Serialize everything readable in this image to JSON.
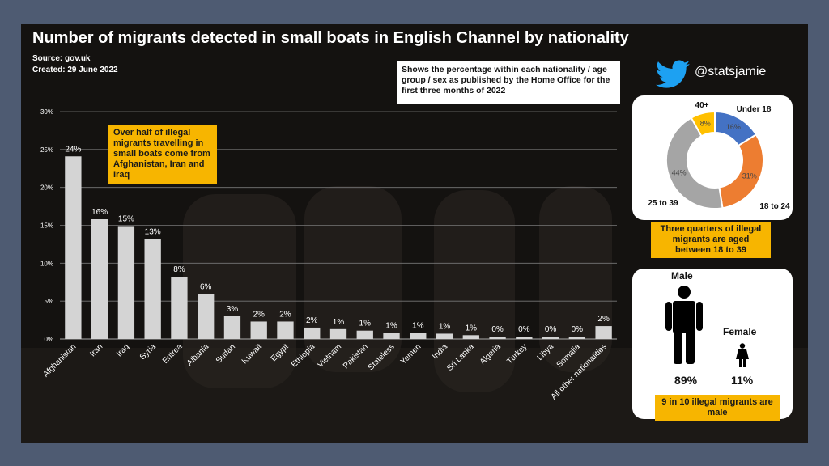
{
  "title": "Number of migrants detected in small boats in English Channel by nationality",
  "source": "Source: gov.uk",
  "created": "Created: 29 June 2022",
  "info": "Shows the percentage within each nationality / age group / sex as published by the Home Office for the first three months of 2022",
  "twitter_handle": "@statsjamie",
  "callout": "Over half of illegal migrants travelling in small boats come from Afghanistan, Iran and Iraq",
  "colors": {
    "bar": "#d4d4d4",
    "under18": "#4472c4",
    "age18to24": "#ed7d31",
    "age25to39": "#a5a5a5",
    "age40plus": "#ffc000",
    "highlight": "#f7b500",
    "twitter": "#1da1f2"
  },
  "chart_data": [
    {
      "type": "bar",
      "categories": [
        "Afghanistan",
        "Iran",
        "Iraq",
        "Syria",
        "Eritrea",
        "Albania",
        "Sudan",
        "Kuwait",
        "Egypt",
        "Ethiopia",
        "Vietnam",
        "Pakistan",
        "Stateless",
        "Yemen",
        "India",
        "Sri Lanka",
        "Algeria",
        "Turkey",
        "Libya",
        "Somalia",
        "All other nationalities"
      ],
      "values": [
        24.1,
        15.8,
        14.9,
        13.2,
        8.2,
        5.9,
        3.0,
        2.3,
        2.3,
        1.5,
        1.3,
        1.1,
        0.8,
        0.8,
        0.7,
        0.5,
        0.3,
        0.3,
        0.3,
        0.3,
        1.7
      ],
      "data_labels": [
        "24%",
        "16%",
        "15%",
        "13%",
        "8%",
        "6%",
        "3%",
        "2%",
        "2%",
        "2%",
        "1%",
        "1%",
        "1%",
        "1%",
        "1%",
        "1%",
        "0%",
        "0%",
        "0%",
        "0%",
        "2%"
      ],
      "yticks": [
        "0%",
        "5%",
        "10%",
        "15%",
        "20%",
        "25%",
        "30%"
      ],
      "ylim": [
        0,
        30
      ],
      "grid": true
    },
    {
      "type": "pie",
      "categories": [
        "Under 18",
        "18 to 24",
        "25 to 39",
        "40+"
      ],
      "values": [
        16,
        31,
        44,
        8
      ],
      "labels": [
        "16%",
        "31%",
        "44%",
        "8%"
      ]
    },
    {
      "type": "bar",
      "categories": [
        "Male",
        "Female"
      ],
      "values": [
        89,
        11
      ],
      "labels": [
        "89%",
        "11%"
      ]
    }
  ],
  "donut_note": "Three quarters of illegal migrants are aged between 18 to 39",
  "gender_note": "9 in 10 illegal migrants are male"
}
